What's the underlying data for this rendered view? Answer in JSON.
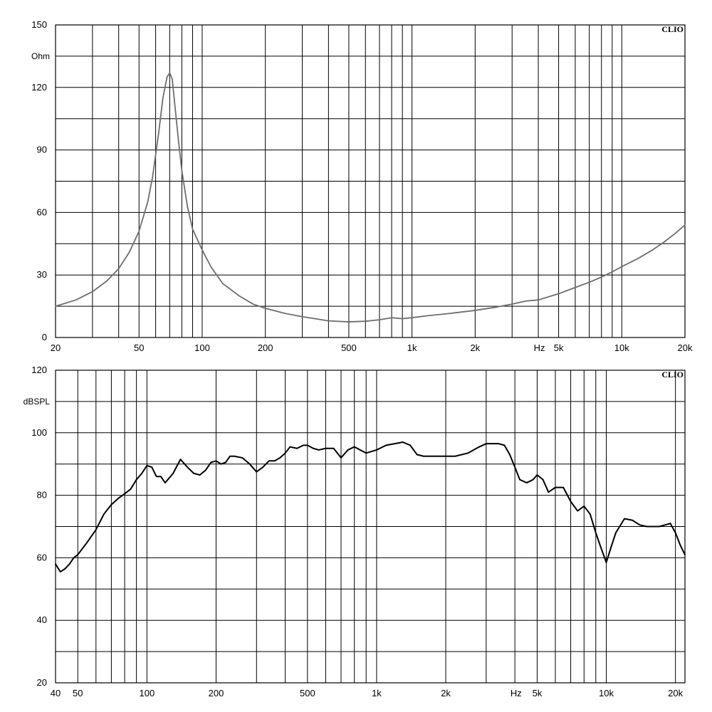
{
  "chart_data": [
    {
      "type": "line",
      "brand": "CLIO",
      "ylabel": "Ohm",
      "xlabel": "Hz",
      "x_scale": "log",
      "xlim": [
        20,
        20000
      ],
      "ylim": [
        0,
        150
      ],
      "y_ticks": [
        0,
        30,
        60,
        90,
        120,
        150
      ],
      "y_tick_labels": [
        "0",
        "30",
        "60",
        "90",
        "120",
        "150"
      ],
      "y_minor_step": 15,
      "x_ticks": [
        20,
        50,
        100,
        200,
        500,
        1000,
        2000,
        5000,
        10000,
        20000
      ],
      "x_tick_labels": [
        "20",
        "50",
        "100",
        "200",
        "500",
        "1k",
        "2k",
        "5k",
        "10k",
        "20k"
      ],
      "x_grid": [
        30,
        40,
        50,
        60,
        70,
        80,
        90,
        100,
        200,
        300,
        400,
        500,
        600,
        700,
        800,
        900,
        1000,
        2000,
        3000,
        4000,
        5000,
        6000,
        7000,
        8000,
        9000,
        10000
      ],
      "grid": true,
      "color": "#6e6e6e",
      "series": [
        {
          "x": [
            20,
            25,
            30,
            35,
            40,
            45,
            50,
            55,
            58,
            62,
            65,
            68,
            70,
            72,
            74,
            77,
            80,
            85,
            90,
            100,
            110,
            125,
            150,
            175,
            200,
            250,
            300,
            400,
            500,
            600,
            700,
            800,
            900,
            1000,
            1200,
            1500,
            2000,
            2500,
            3000,
            3500,
            4000,
            5000,
            6000,
            7000,
            8000,
            9000,
            10000,
            12000,
            14000,
            16000,
            18000,
            20000
          ],
          "y": [
            15,
            18,
            22,
            27,
            33,
            41,
            51,
            65,
            77,
            98,
            115,
            125,
            127,
            124,
            112,
            95,
            80,
            63,
            52,
            42,
            34,
            26,
            20,
            16,
            14,
            11.5,
            10,
            8,
            7.5,
            7.8,
            8.5,
            9.5,
            9,
            9.5,
            10.5,
            11.5,
            13,
            14.5,
            16,
            17.5,
            18,
            21,
            24,
            26.5,
            29,
            31.5,
            34,
            38,
            42,
            46,
            50,
            54
          ]
        }
      ]
    },
    {
      "type": "line",
      "brand": "CLIO",
      "ylabel": "dBSPL",
      "xlabel": "Hz",
      "x_scale": "log",
      "xlim": [
        40,
        22000
      ],
      "ylim": [
        20,
        120
      ],
      "y_ticks": [
        20,
        40,
        60,
        80,
        100,
        120
      ],
      "y_tick_labels": [
        "20",
        "40",
        "60",
        "80",
        "100",
        "120"
      ],
      "y_minor_step": 10,
      "x_ticks": [
        40,
        50,
        100,
        200,
        500,
        1000,
        2000,
        5000,
        10000,
        20000
      ],
      "x_tick_labels": [
        "40",
        "50",
        "100",
        "200",
        "500",
        "1k",
        "2k",
        "5k",
        "10k",
        "20k"
      ],
      "x_grid": [
        50,
        60,
        70,
        80,
        90,
        100,
        200,
        300,
        400,
        500,
        600,
        700,
        800,
        900,
        1000,
        2000,
        3000,
        4000,
        5000,
        6000,
        7000,
        8000,
        9000,
        10000,
        20000
      ],
      "grid": true,
      "color": "#000000",
      "series": [
        {
          "x": [
            40,
            42,
            44,
            46,
            48,
            50,
            55,
            60,
            65,
            70,
            75,
            80,
            85,
            90,
            95,
            100,
            105,
            110,
            115,
            120,
            130,
            140,
            150,
            160,
            170,
            180,
            190,
            200,
            210,
            220,
            230,
            240,
            260,
            280,
            300,
            320,
            340,
            360,
            380,
            400,
            420,
            450,
            480,
            500,
            530,
            560,
            600,
            650,
            700,
            750,
            800,
            900,
            1000,
            1100,
            1200,
            1300,
            1400,
            1500,
            1600,
            1800,
            2000,
            2200,
            2500,
            2800,
            3000,
            3200,
            3400,
            3600,
            3800,
            4000,
            4200,
            4500,
            4800,
            5000,
            5300,
            5600,
            6000,
            6500,
            7000,
            7500,
            8000,
            8500,
            9000,
            9500,
            10000,
            10500,
            11000,
            12000,
            13000,
            14000,
            15000,
            16000,
            17000,
            18000,
            19000,
            20000,
            21000,
            22000
          ],
          "y": [
            58,
            55.5,
            56.5,
            58,
            60,
            61,
            65,
            69,
            74,
            77,
            79,
            80.5,
            82,
            85,
            87,
            89.5,
            89,
            86,
            86,
            84,
            87,
            91.5,
            89,
            87,
            86.5,
            88,
            90.5,
            91,
            90,
            90.5,
            92.5,
            92.5,
            92,
            90,
            87.5,
            89,
            91,
            91,
            92,
            93.5,
            95.5,
            95,
            96,
            96,
            95,
            94.5,
            95,
            95,
            92,
            94.5,
            95.5,
            93.5,
            94.5,
            96,
            96.5,
            97,
            96,
            93,
            92.5,
            92.5,
            92.5,
            92.5,
            93.5,
            95.5,
            96.5,
            96.5,
            96.5,
            96,
            93,
            89,
            85,
            84,
            85,
            86.5,
            85,
            81,
            82.5,
            82.5,
            78,
            75,
            76.5,
            74,
            68,
            63,
            58.5,
            63.5,
            68,
            72.5,
            72,
            70.5,
            70,
            70,
            70,
            70.5,
            71,
            68,
            64,
            61
          ]
        }
      ]
    }
  ]
}
